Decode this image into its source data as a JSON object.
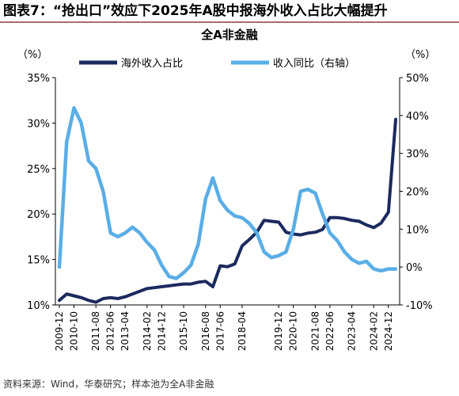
{
  "header": {
    "figure_title": "图表7：“抢出口”效应下2025年A股中报海外收入占比大幅提升"
  },
  "footer": {
    "source": "资料来源：Wind，华泰研究；样本池为全A非金融"
  },
  "colors": {
    "share_line": "#1b2a5e",
    "growth_line": "#5aaee6",
    "axis": "#000000"
  },
  "chart_data": {
    "type": "line",
    "title": "全A非金融",
    "left_unit": "（%）",
    "right_unit": "（%）",
    "legend_position": "top",
    "grid": false,
    "x": [
      "2009-12",
      "2010-06",
      "2010-10",
      "2010-12",
      "2011-06",
      "2011-08",
      "2011-12",
      "2012-06",
      "2012-12",
      "2013-04",
      "2013-06",
      "2013-12",
      "2014-02",
      "2014-06",
      "2014-12",
      "2015-04",
      "2015-06",
      "2015-10",
      "2015-12",
      "2016-06",
      "2016-08",
      "2016-12",
      "2017-06",
      "2017-08",
      "2017-12",
      "2018-04",
      "2018-06",
      "2018-12",
      "2019-06",
      "2019-08",
      "2019-12",
      "2020-06",
      "2020-10",
      "2020-12",
      "2021-06",
      "2021-08",
      "2021-12",
      "2022-06",
      "2022-08",
      "2022-12",
      "2023-04",
      "2023-06",
      "2023-12",
      "2024-02",
      "2024-06",
      "2024-12",
      "2025-06"
    ],
    "x_tick_labels": [
      "2009-12",
      "2010-10",
      "2011-08",
      "2012-06",
      "2013-04",
      "2014-02",
      "2014-12",
      "2015-10",
      "2016-08",
      "2017-06",
      "2018-04",
      "2019-02",
      "2019-12",
      "2020-10",
      "2021-08",
      "2022-06",
      "2023-04",
      "2024-02",
      "2024-12"
    ],
    "left_axis": {
      "min": 10,
      "max": 35,
      "ticks": [
        "10%",
        "15%",
        "20%",
        "25%",
        "30%",
        "35%"
      ]
    },
    "right_axis": {
      "min": -10,
      "max": 50,
      "ticks": [
        "-10%",
        "0%",
        "10%",
        "20%",
        "30%",
        "40%",
        "50%"
      ]
    },
    "series": [
      {
        "name": "海外收入占比",
        "axis": "left",
        "values": [
          10.5,
          11.2,
          11.0,
          10.8,
          10.5,
          10.3,
          10.7,
          10.8,
          10.7,
          10.9,
          11.2,
          11.5,
          11.8,
          11.9,
          12.0,
          12.1,
          12.2,
          12.3,
          12.3,
          12.5,
          12.6,
          12.0,
          14.3,
          14.2,
          14.5,
          16.5,
          17.2,
          18.0,
          19.3,
          19.2,
          19.1,
          18.0,
          17.8,
          17.7,
          17.9,
          18.0,
          18.3,
          19.6,
          19.6,
          19.5,
          19.3,
          19.2,
          18.8,
          18.5,
          19.0,
          20.2,
          30.4
        ]
      },
      {
        "name": "收入同比（右轴）",
        "axis": "right",
        "values": [
          0.0,
          33.0,
          42.0,
          38.0,
          28.0,
          26.0,
          20.0,
          9.0,
          8.0,
          9.0,
          10.5,
          9.0,
          6.5,
          4.5,
          0.5,
          -2.5,
          -3.0,
          -1.5,
          0.5,
          6.0,
          18.0,
          23.5,
          17.5,
          15.0,
          13.5,
          13.0,
          11.5,
          9.0,
          4.0,
          2.5,
          3.0,
          4.0,
          10.0,
          20.0,
          20.5,
          19.5,
          14.0,
          9.0,
          7.0,
          4.0,
          2.0,
          1.0,
          1.5,
          -0.5,
          -1.0,
          -0.5,
          -0.5
        ]
      }
    ]
  }
}
